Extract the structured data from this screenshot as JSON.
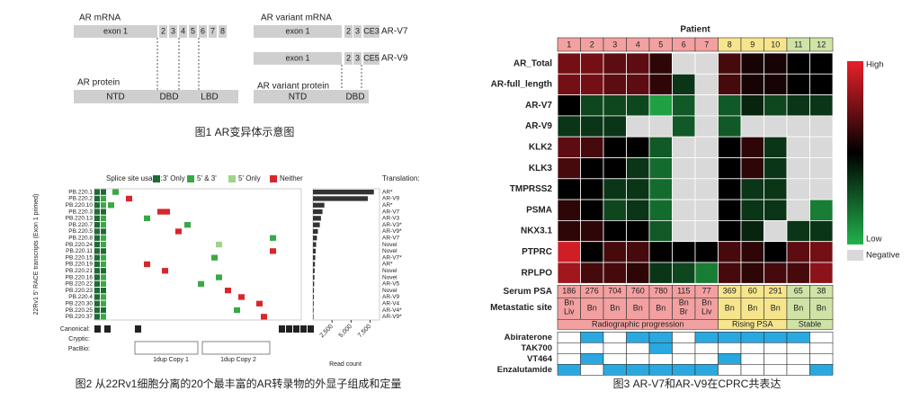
{
  "figure1": {
    "mrna_label": "AR mRNA",
    "exons": [
      "exon 1",
      "2",
      "3",
      "4",
      "5",
      "6",
      "7",
      "8"
    ],
    "protein_label": "AR protein",
    "domains": [
      "NTD",
      "DBD",
      "LBD"
    ],
    "variant_label": "AR variant mRNA",
    "variants": [
      {
        "exons": [
          "exon 1",
          "2",
          "3",
          "CE3"
        ],
        "name": "AR-V7"
      },
      {
        "exons": [
          "exon 1",
          "2",
          "3",
          "CE5"
        ],
        "name": "AR-V9"
      }
    ],
    "variant_protein_label": "AR variant protein",
    "variant_domains": [
      "NTD",
      "DBD"
    ],
    "caption": "图1 AR变异体示意图"
  },
  "figure2": {
    "legend_title": "Splice site usage:",
    "legend": [
      "3' Only",
      "5' & 3'",
      "5' Only",
      "Neither"
    ],
    "y_label": "22Rv1 5' RACE transcripts (Exon 1 primed)",
    "transcripts": [
      "PB.220.1",
      "PB.220.2",
      "PB.220.10",
      "PB.220.3",
      "PB.220.13",
      "PB.220.7",
      "PB.220.5",
      "PB.220.8",
      "PB.220.24",
      "PB.220.11",
      "PB.220.15",
      "PB.220.19",
      "PB.220.21",
      "PB.220.16",
      "PB.220.22",
      "PB.220.23",
      "PB.220.4",
      "PB.220.30",
      "PB.220.25",
      "PB.220.37"
    ],
    "translation_title": "Translation:",
    "translation": [
      "AR*",
      "AR-V9",
      "AR*",
      "AR-V7",
      "AR-V3",
      "AR-V3*",
      "AR-V9*",
      "AR-V7",
      "Novel",
      "Novel",
      "AR-V7*",
      "AR*",
      "Novel",
      "Novel",
      "AR-V5",
      "Novel",
      "AR-V9",
      "AR-V4",
      "AR-V4*",
      "AR-V9*"
    ],
    "read_counts": [
      8000,
      7200,
      1500,
      1250,
      1050,
      900,
      650,
      520,
      420,
      360,
      300,
      260,
      220,
      190,
      160,
      130,
      110,
      95,
      85,
      70
    ],
    "xlim": [
      0,
      8500
    ],
    "xticks": [
      {
        "value": 2500,
        "label": "2,500"
      },
      {
        "value": 5000,
        "label": "5,000"
      },
      {
        "value": 7500,
        "label": "7,500"
      }
    ],
    "x_label": "Read count",
    "row_labels": [
      "Canonical:",
      "Cryptic:",
      "PacBio:"
    ],
    "canonical_exons": [
      "1",
      "2",
      "3",
      "4",
      "5",
      "6",
      "7",
      "8"
    ],
    "copy_labels": [
      "1dup Copy 1",
      "1dup Copy 2"
    ],
    "caption": "图2 从22Rv1细胞分离的20个最丰富的AR转录物的外显子组成和定量"
  },
  "figure3": {
    "title": "Patient",
    "patients": [
      "1",
      "2",
      "3",
      "4",
      "5",
      "6",
      "7",
      "8",
      "9",
      "10",
      "11",
      "12"
    ],
    "genes": [
      "AR_Total",
      "AR-full_length",
      "AR-V7",
      "AR-V9",
      "KLK2",
      "KLK3",
      "TMPRSS2",
      "PSMA",
      "NKX3.1",
      "PTPRC",
      "RPLPO"
    ],
    "levels": [
      [
        0.5,
        0.5,
        0.4,
        0.4,
        0.2,
        null,
        null,
        0.3,
        0.1,
        0.1,
        0,
        0
      ],
      [
        0.5,
        0.5,
        0.4,
        0.4,
        0.2,
        -0.3,
        null,
        0.3,
        0.1,
        0.1,
        0,
        0
      ],
      [
        0,
        -0.4,
        -0.4,
        -0.4,
        -0.9,
        -0.5,
        null,
        -0.5,
        -0.2,
        -0.4,
        -0.3,
        -0.3
      ],
      [
        -0.3,
        -0.3,
        -0.3,
        null,
        null,
        -0.5,
        null,
        -0.5,
        null,
        null,
        null,
        null
      ],
      [
        0.4,
        0.3,
        0,
        0,
        -0.5,
        null,
        null,
        0,
        0.2,
        -0.3,
        null,
        null
      ],
      [
        0.3,
        0,
        0,
        -0.3,
        -0.6,
        null,
        null,
        0,
        0.2,
        -0.3,
        null,
        null
      ],
      [
        0,
        0,
        -0.3,
        -0.3,
        -0.6,
        null,
        null,
        0,
        -0.3,
        -0.3,
        null,
        null
      ],
      [
        0.2,
        0,
        -0.4,
        -0.3,
        -0.6,
        null,
        null,
        0,
        -0.3,
        -0.3,
        null,
        -0.7
      ],
      [
        0.2,
        0.2,
        0,
        0,
        -0.5,
        null,
        null,
        0,
        -0.2,
        null,
        -0.3,
        -0.3
      ],
      [
        0.9,
        0,
        0.3,
        0.3,
        0,
        0,
        0,
        0.3,
        0.2,
        0,
        0.4,
        0.5
      ],
      [
        0.7,
        0.3,
        0.3,
        0.2,
        -0.3,
        -0.4,
        -0.7,
        0.3,
        0.2,
        0.3,
        0.3,
        0.6
      ]
    ],
    "legend": [
      "High",
      "Low",
      "Negative"
    ],
    "psa_label": "Serum PSA",
    "psa": [
      186,
      276,
      704,
      760,
      780,
      115,
      77,
      369,
      60,
      291,
      65,
      38
    ],
    "site_label": "Metastatic site",
    "sites": [
      [
        "Bn",
        "Liv"
      ],
      [
        "Bn"
      ],
      [
        "Bn"
      ],
      [
        "Bn"
      ],
      [
        "Bn"
      ],
      [
        "Bn",
        "Br"
      ],
      [
        "Bn",
        "Liv"
      ],
      [
        "Bn"
      ],
      [
        "Bn"
      ],
      [
        "Bn"
      ],
      [
        "Bn"
      ],
      [
        "Bn"
      ]
    ],
    "groups": [
      {
        "label": "Radiographic progression",
        "from": 1,
        "to": 7,
        "color": "#f3a0a0"
      },
      {
        "label": "Rising PSA",
        "from": 8,
        "to": 10,
        "color": "#f6e58c"
      },
      {
        "label": "Stable",
        "from": 11,
        "to": 12,
        "color": "#cfe3a6"
      }
    ],
    "treatments": [
      {
        "name": "Abiraterone",
        "on": [
          false,
          true,
          false,
          true,
          true,
          false,
          true,
          true,
          true,
          true,
          true,
          false
        ]
      },
      {
        "name": "TAK700",
        "on": [
          false,
          false,
          false,
          false,
          true,
          false,
          false,
          false,
          false,
          false,
          false,
          false
        ]
      },
      {
        "name": "VT464",
        "on": [
          false,
          true,
          false,
          false,
          false,
          false,
          false,
          true,
          false,
          false,
          false,
          false
        ]
      },
      {
        "name": "Enzalutamide",
        "on": [
          true,
          false,
          true,
          true,
          true,
          true,
          true,
          false,
          false,
          false,
          false,
          true
        ]
      }
    ],
    "caption": "图3 AR-V7和AR-V9在CPRC共表达"
  }
}
